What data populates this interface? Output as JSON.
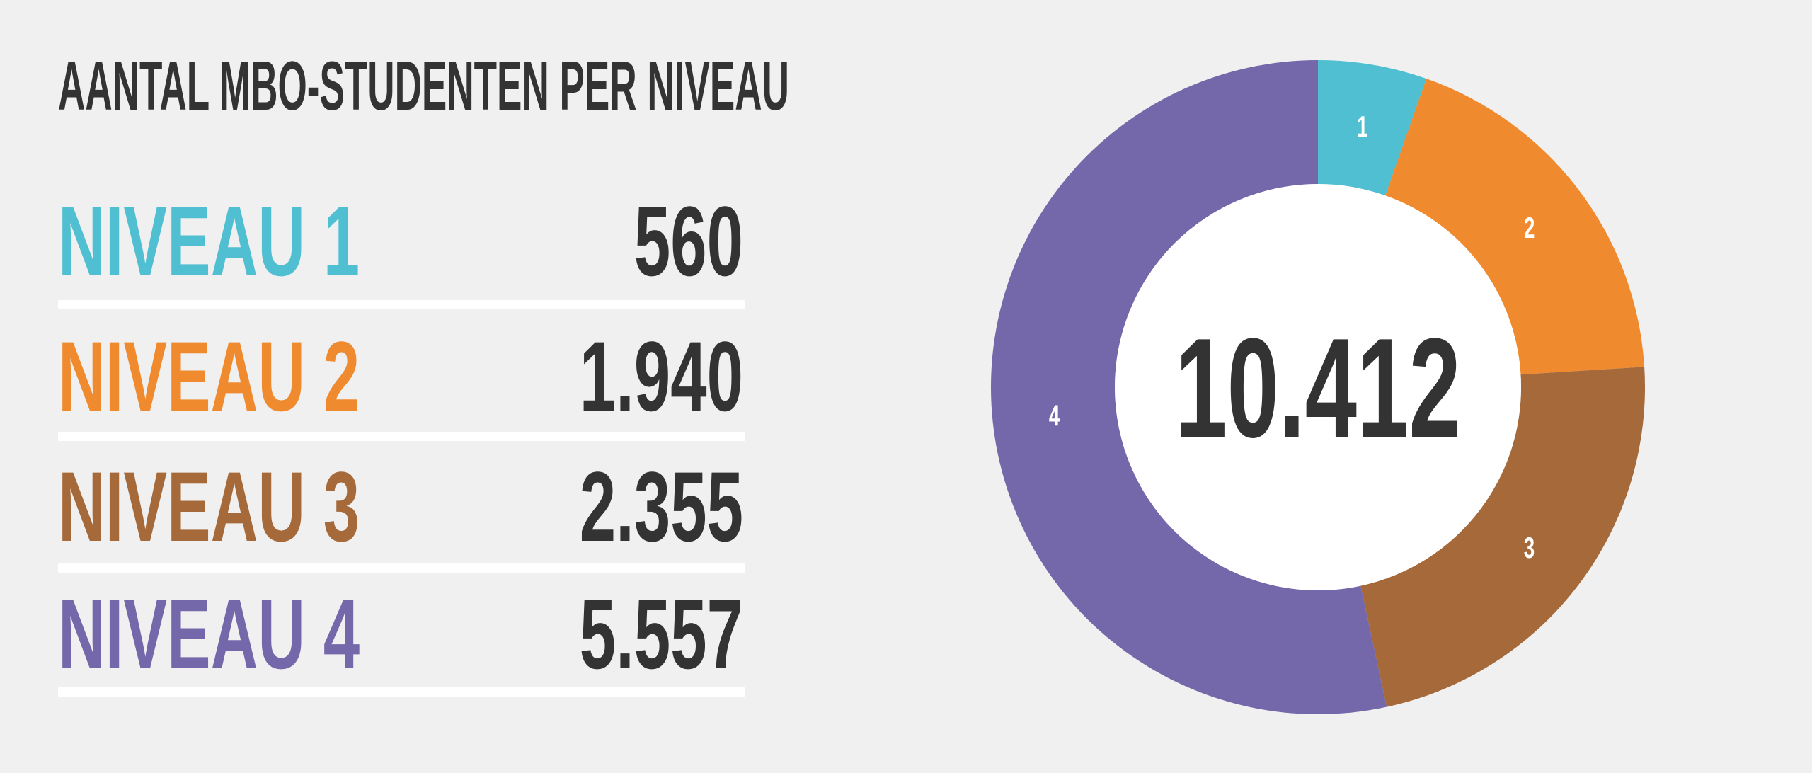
{
  "chart_data": {
    "type": "donut",
    "title": "AANTAL MBO-STUDENTEN PER NIVEAU",
    "categories": [
      "NIVEAU 1",
      "NIVEAU 2",
      "NIVEAU 3",
      "NIVEAU 4"
    ],
    "values": [
      560,
      1940,
      2355,
      5557
    ],
    "value_labels": [
      "560",
      "1.940",
      "2.355",
      "5.557"
    ],
    "slice_labels": [
      "1",
      "2",
      "3",
      "4"
    ],
    "colors": [
      "#4fbfd1",
      "#ef8a2e",
      "#a5693a",
      "#7467aa"
    ],
    "total": {
      "value": 10412,
      "label": "10.412"
    }
  }
}
